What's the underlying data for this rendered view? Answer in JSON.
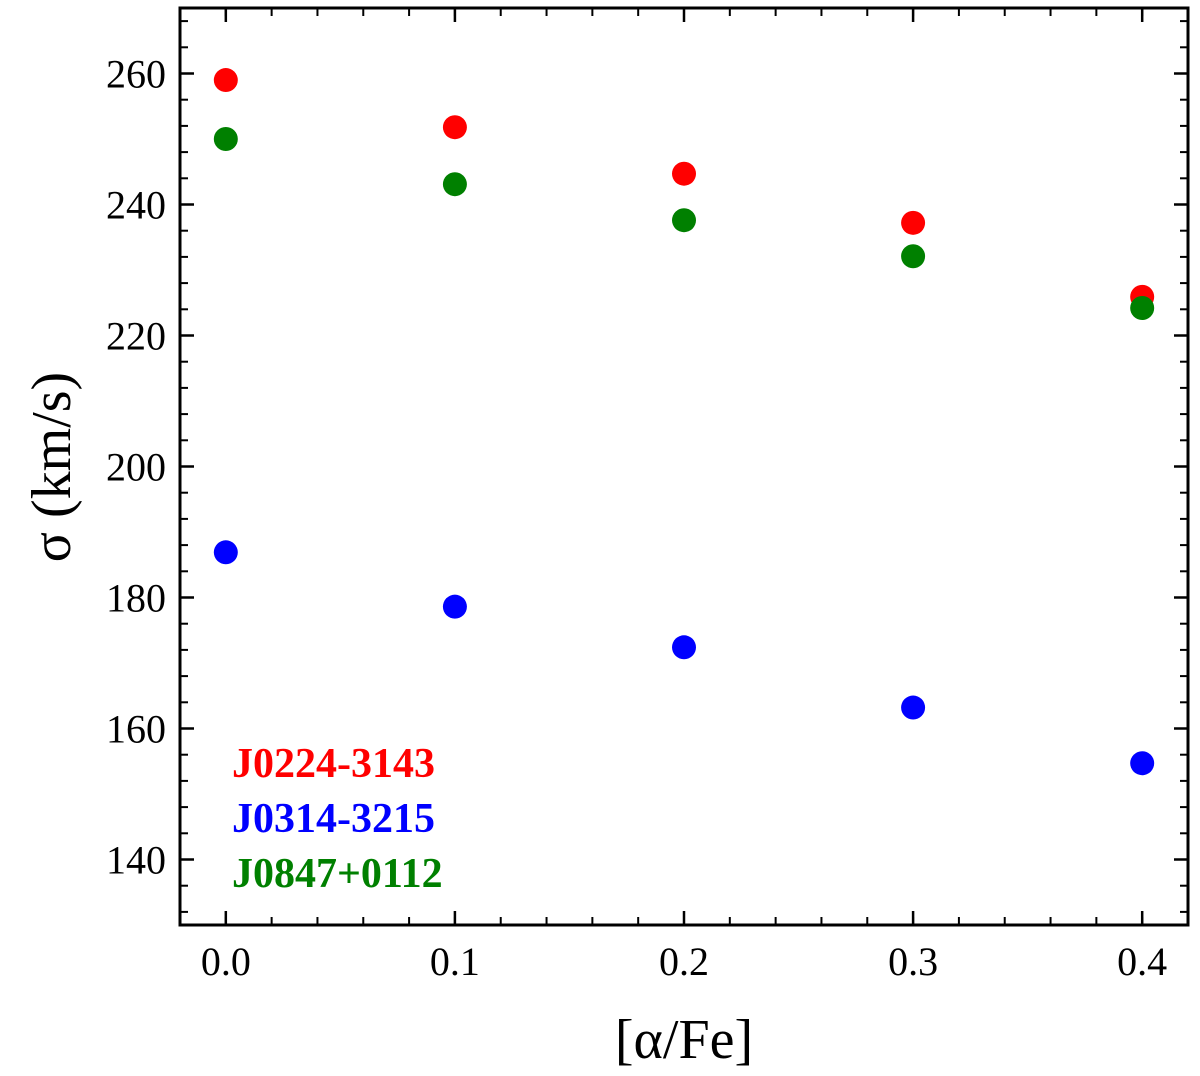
{
  "chart_data": {
    "type": "scatter",
    "title": "",
    "xlabel": "[α/Fe]",
    "ylabel": "σ (km/s)",
    "xlim": [
      -0.02,
      0.42
    ],
    "ylim": [
      130,
      270
    ],
    "x_ticks": [
      0.0,
      0.1,
      0.2,
      0.3,
      0.4
    ],
    "x_tick_labels": [
      "0.0",
      "0.1",
      "0.2",
      "0.3",
      "0.4"
    ],
    "x_minor_step": 0.02,
    "y_ticks": [
      140,
      160,
      180,
      200,
      220,
      240,
      260
    ],
    "y_tick_labels": [
      "140",
      "160",
      "180",
      "200",
      "220",
      "240",
      "260"
    ],
    "y_minor_step": 4,
    "grid": false,
    "legend_position": "bottom-left",
    "series": [
      {
        "name": "J0224-3143",
        "color": "#ff0000",
        "x": [
          0.0,
          0.1,
          0.2,
          0.3,
          0.4
        ],
        "values": [
          259,
          251.8,
          244.7,
          237.2,
          225.9
        ]
      },
      {
        "name": "J0314-3215",
        "color": "#0000ff",
        "x": [
          0.0,
          0.1,
          0.2,
          0.3,
          0.4
        ],
        "values": [
          186.9,
          178.6,
          172.4,
          163.2,
          154.7
        ]
      },
      {
        "name": "J0847+0112",
        "color": "#008000",
        "x": [
          0.0,
          0.1,
          0.2,
          0.3,
          0.4
        ],
        "values": [
          250,
          243.1,
          237.6,
          232.1,
          224.2
        ]
      }
    ]
  }
}
